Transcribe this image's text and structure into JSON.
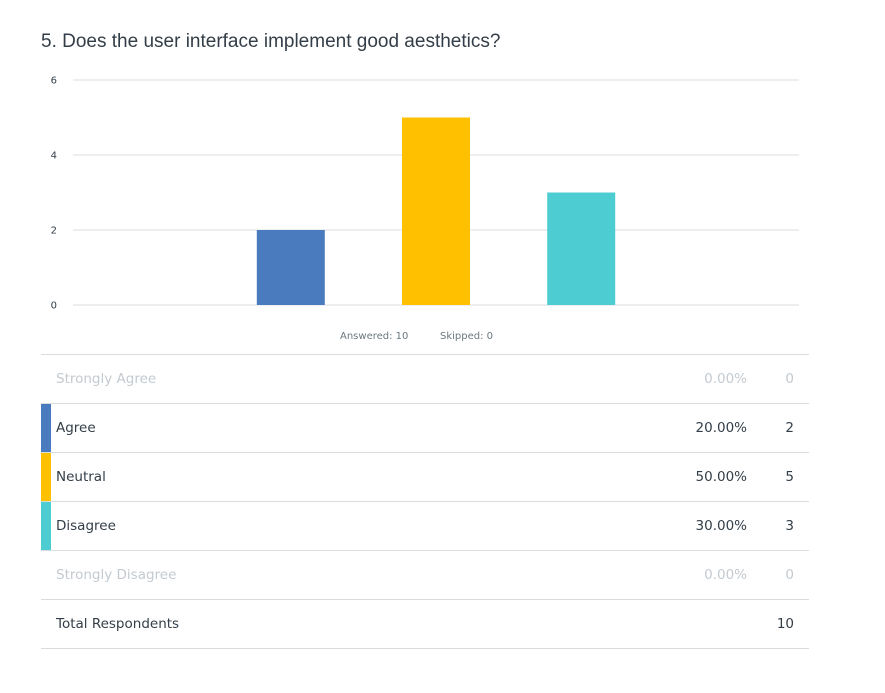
{
  "question": {
    "title": "5. Does the user interface implement good aesthetics?"
  },
  "summary": {
    "answered": "Answered: 10",
    "skipped": "Skipped: 0"
  },
  "chart_data": {
    "type": "bar",
    "categories": [
      "Strongly Agree",
      "Agree",
      "Neutral",
      "Disagree",
      "Strongly Disagree"
    ],
    "values": [
      0,
      2,
      5,
      3,
      0
    ],
    "colors": [
      "#3f73bd",
      "#4a7bbf",
      "#ffc000",
      "#4dcdd2",
      "#3f73bd"
    ],
    "ylim": [
      0,
      6
    ],
    "yticks": [
      0,
      2,
      4,
      6
    ],
    "grid": true,
    "legend": "none"
  },
  "table": {
    "rows": [
      {
        "label": "Strongly Agree",
        "percent": "0.00%",
        "count": "0",
        "color": "",
        "muted": true
      },
      {
        "label": "Agree",
        "percent": "20.00%",
        "count": "2",
        "color": "#4a7bbf",
        "muted": false
      },
      {
        "label": "Neutral",
        "percent": "50.00%",
        "count": "5",
        "color": "#ffc000",
        "muted": false
      },
      {
        "label": "Disagree",
        "percent": "30.00%",
        "count": "3",
        "color": "#4dcdd2",
        "muted": false
      },
      {
        "label": "Strongly Disagree",
        "percent": "0.00%",
        "count": "0",
        "color": "",
        "muted": true
      }
    ],
    "total": {
      "label": "Total Respondents",
      "count": "10"
    }
  }
}
